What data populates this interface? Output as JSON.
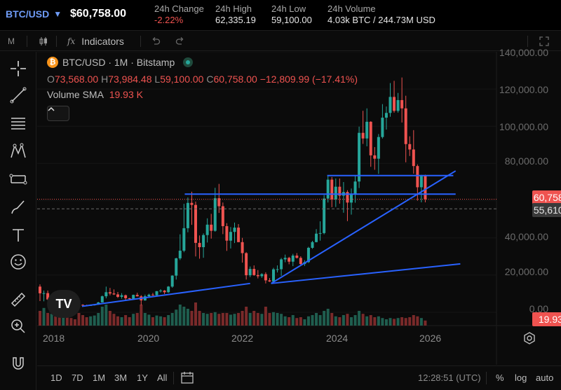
{
  "ticker": {
    "symbol": "BTC/USD",
    "last_price": "$60,758.00",
    "stats": [
      {
        "label": "24h Change",
        "value": "-2.22%",
        "negative": true
      },
      {
        "label": "24h High",
        "value": "62,335.19",
        "negative": false
      },
      {
        "label": "24h Low",
        "value": "59,100.00",
        "negative": false
      },
      {
        "label": "24h Volume",
        "value": "4.03k BTC / 244.73M USD",
        "negative": false
      }
    ]
  },
  "toolbar": {
    "interval_short": "M",
    "indicators_label": "Indicators",
    "fx_glyph": "fx"
  },
  "legend": {
    "symbol_line": "BTC/USD · 1M · Bitstamp",
    "coin_glyph": "₿",
    "open_key": "O",
    "open": "73,568.00",
    "high_key": "H",
    "high": "73,984.48",
    "low_key": "L",
    "low": "59,100.00",
    "close_key": "C",
    "close": "60,758.00",
    "change": "−12,809.99 (−17.41%)",
    "volume_label": "Volume SMA",
    "volume_value": "19.93 K"
  },
  "price_scale": {
    "labels": [
      "140,000.00",
      "120,000.00",
      "100,000.00",
      "80,000.00",
      "40,000.00",
      "20,000.00",
      "0.00"
    ],
    "last_price_tag": "60,758.00",
    "dashed_level_tag": "55,610.72",
    "volume_tag": "19.93 K"
  },
  "time_axis": {
    "labels": [
      "2018",
      "2020",
      "2022",
      "2024",
      "2026"
    ]
  },
  "logo_text": "TV",
  "bottom": {
    "ranges": [
      "1D",
      "7D",
      "1M",
      "3M",
      "1Y",
      "All"
    ],
    "clock": "12:28:51 (UTC)",
    "percent_label": "%",
    "log_label": "log",
    "auto_label": "auto"
  },
  "chart_data": {
    "type": "candlestick",
    "source_note": "BTC/USD monthly, Bitstamp",
    "y_range": [
      0,
      140000
    ],
    "colors": {
      "up": "#26a69a",
      "down": "#ef5350",
      "trendline": "#2962ff",
      "volume_up": "#1f5e4f",
      "volume_down": "#7a2a2a"
    },
    "x_start_year": 2018,
    "candles": [
      [
        13800,
        15000,
        6000,
        10200
      ],
      [
        10200,
        11700,
        5900,
        10300
      ],
      [
        10300,
        11700,
        6500,
        6900
      ],
      [
        6900,
        9800,
        6500,
        9200
      ],
      [
        9200,
        10000,
        7000,
        7500
      ],
      [
        7500,
        7800,
        5800,
        6400
      ],
      [
        6400,
        8500,
        6100,
        7700
      ],
      [
        7700,
        7800,
        5900,
        7000
      ],
      [
        7000,
        7400,
        6100,
        6600
      ],
      [
        6600,
        7200,
        6100,
        6300
      ],
      [
        6300,
        6600,
        3600,
        4000
      ],
      [
        4000,
        4300,
        3200,
        3700
      ],
      [
        3700,
        4100,
        3400,
        3450
      ],
      [
        3450,
        4200,
        3400,
        3800
      ],
      [
        3800,
        4100,
        3600,
        4100
      ],
      [
        4100,
        5600,
        4100,
        5300
      ],
      [
        5300,
        9000,
        5300,
        8600
      ],
      [
        8600,
        13800,
        7500,
        10800
      ],
      [
        10800,
        13100,
        9100,
        10100
      ],
      [
        10100,
        12300,
        9300,
        9600
      ],
      [
        9600,
        10900,
        7700,
        8300
      ],
      [
        8300,
        10300,
        7300,
        9150
      ],
      [
        9150,
        9500,
        6500,
        7550
      ],
      [
        7550,
        7700,
        6400,
        7200
      ],
      [
        7200,
        9500,
        6900,
        9350
      ],
      [
        9350,
        10500,
        8500,
        8550
      ],
      [
        8550,
        9200,
        3800,
        6400
      ],
      [
        6400,
        9500,
        6200,
        8600
      ],
      [
        8600,
        10000,
        8100,
        9450
      ],
      [
        9450,
        10400,
        8900,
        9130
      ],
      [
        9130,
        11400,
        9000,
        11350
      ],
      [
        11350,
        12400,
        10600,
        11650
      ],
      [
        11650,
        12000,
        9800,
        10780
      ],
      [
        10780,
        14100,
        10400,
        13800
      ],
      [
        13800,
        19900,
        13200,
        19700
      ],
      [
        19700,
        29300,
        17600,
        28990
      ],
      [
        28990,
        41900,
        28100,
        33100
      ],
      [
        33100,
        58300,
        32300,
        45200
      ],
      [
        45200,
        61700,
        43000,
        58800
      ],
      [
        58800,
        64800,
        47000,
        57700
      ],
      [
        57700,
        59500,
        30000,
        37300
      ],
      [
        37300,
        41300,
        28800,
        35000
      ],
      [
        35000,
        42400,
        29300,
        41500
      ],
      [
        41500,
        50500,
        37500,
        47100
      ],
      [
        47100,
        52900,
        39600,
        43800
      ],
      [
        43800,
        66900,
        43300,
        61300
      ],
      [
        61300,
        69000,
        53400,
        57000
      ],
      [
        57000,
        59000,
        42000,
        46300
      ],
      [
        46300,
        47900,
        33000,
        38500
      ],
      [
        38500,
        45800,
        34300,
        43200
      ],
      [
        43200,
        48200,
        37200,
        45500
      ],
      [
        45500,
        47400,
        37700,
        37700
      ],
      [
        37700,
        40000,
        26700,
        31800
      ],
      [
        31800,
        32300,
        17600,
        19900
      ],
      [
        19900,
        24600,
        18900,
        23300
      ],
      [
        23300,
        25200,
        19600,
        20000
      ],
      [
        20000,
        22700,
        18200,
        19400
      ],
      [
        19400,
        21000,
        18500,
        20500
      ],
      [
        20500,
        21500,
        15500,
        17150
      ],
      [
        17150,
        18400,
        16300,
        16540
      ],
      [
        16540,
        23900,
        16500,
        23100
      ],
      [
        23100,
        25200,
        21400,
        23150
      ],
      [
        23150,
        29200,
        19600,
        28450
      ],
      [
        28450,
        31000,
        26900,
        29250
      ],
      [
        29250,
        29800,
        25800,
        27200
      ],
      [
        27200,
        31400,
        24800,
        30470
      ],
      [
        30470,
        31800,
        28900,
        29230
      ],
      [
        29230,
        30100,
        25300,
        25940
      ],
      [
        25940,
        28000,
        24900,
        26970
      ],
      [
        26970,
        35200,
        26500,
        34640
      ],
      [
        34640,
        38400,
        34100,
        37720
      ],
      [
        37720,
        44700,
        37600,
        42260
      ],
      [
        42260,
        48900,
        38500,
        42580
      ],
      [
        42580,
        63000,
        41900,
        61130
      ],
      [
        61130,
        73700,
        59000,
        71290
      ],
      [
        71290,
        72700,
        56500,
        60640
      ],
      [
        60640,
        71900,
        56600,
        67490
      ],
      [
        67490,
        71900,
        58400,
        62680
      ],
      [
        62680,
        70000,
        53500,
        64620
      ],
      [
        64620,
        65600,
        49000,
        58970
      ],
      [
        58970,
        66500,
        52500,
        63330
      ],
      [
        63330,
        73500,
        58900,
        70290
      ],
      [
        70290,
        99800,
        66800,
        96450
      ],
      [
        96450,
        108300,
        90500,
        93430
      ],
      [
        93430,
        109600,
        89200,
        102400
      ],
      [
        102400,
        102700,
        78200,
        84350
      ],
      [
        84350,
        88800,
        76600,
        82550
      ],
      [
        82550,
        95800,
        74400,
        94200
      ],
      [
        94200,
        111900,
        93400,
        104600
      ],
      [
        104600,
        110600,
        98200,
        107150
      ],
      [
        107150,
        123200,
        105100,
        115750
      ],
      [
        115750,
        124400,
        107300,
        108250
      ],
      [
        108250,
        117900,
        107300,
        114050
      ],
      [
        114050,
        126200,
        102000,
        109600
      ],
      [
        109600,
        116400,
        80600,
        90400
      ],
      [
        90400,
        94600,
        84000,
        87500
      ],
      [
        87500,
        97900,
        74500,
        78600
      ],
      [
        78600,
        79500,
        60000,
        67200
      ],
      [
        67200,
        73900,
        59100,
        73568
      ],
      [
        73568,
        73984,
        59100,
        60758
      ]
    ],
    "volume_relative": [
      0.35,
      0.42,
      0.3,
      0.28,
      0.22,
      0.2,
      0.25,
      0.24,
      0.18,
      0.15,
      0.3,
      0.25,
      0.2,
      0.22,
      0.24,
      0.3,
      0.45,
      0.5,
      0.35,
      0.28,
      0.22,
      0.2,
      0.25,
      0.2,
      0.28,
      0.3,
      0.5,
      0.3,
      0.26,
      0.2,
      0.24,
      0.22,
      0.2,
      0.25,
      0.3,
      0.38,
      0.5,
      0.45,
      0.4,
      0.35,
      0.55,
      0.35,
      0.3,
      0.28,
      0.3,
      0.32,
      0.28,
      0.3,
      0.3,
      0.26,
      0.28,
      0.3,
      0.35,
      0.45,
      0.3,
      0.35,
      0.3,
      0.28,
      0.45,
      0.3,
      0.32,
      0.3,
      0.28,
      0.22,
      0.2,
      0.25,
      0.18,
      0.2,
      0.15,
      0.22,
      0.25,
      0.3,
      0.25,
      0.35,
      0.4,
      0.3,
      0.22,
      0.2,
      0.25,
      0.28,
      0.2,
      0.25,
      0.35,
      0.28,
      0.22,
      0.25,
      0.2,
      0.22,
      0.18,
      0.15,
      0.18,
      0.16,
      0.18,
      0.2,
      0.18,
      0.2,
      0.25,
      0.22,
      0.18,
      0.12
    ],
    "horizontal_levels": [
      60758,
      55610.72
    ],
    "drawn_lines": [
      {
        "from": [
          2021.1,
          63500
        ],
        "to": [
          2026.9,
          63500
        ]
      },
      {
        "from": [
          2024.15,
          73500
        ],
        "to": [
          2026.85,
          73500
        ]
      },
      {
        "from": [
          2018.9,
          3200
        ],
        "to": [
          2022.5,
          15500
        ]
      },
      {
        "from": [
          2022.95,
          15500
        ],
        "to": [
          2027.0,
          26000
        ]
      },
      {
        "from": [
          2022.95,
          15500
        ],
        "to": [
          2026.9,
          76000
        ]
      }
    ]
  }
}
